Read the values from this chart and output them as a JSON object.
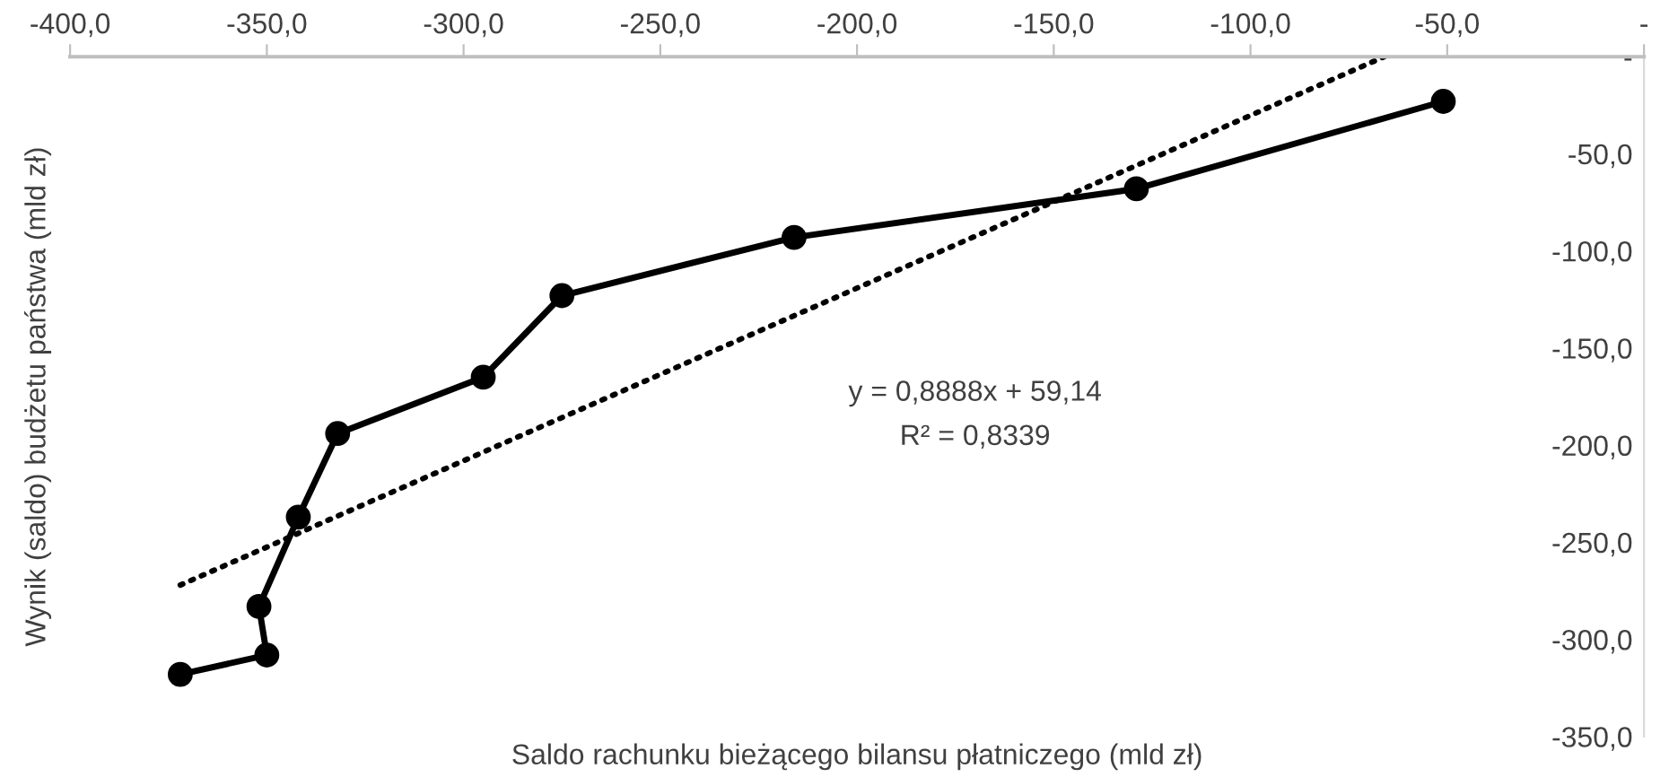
{
  "chart_data": {
    "type": "line",
    "xlabel": "Saldo rachunku bieżącego bilansu płatniczego (mld zł)",
    "ylabel": "Wynik (saldo) budżetu państwa (mld zł)",
    "annotations": [
      "y = 0,8888x + 59,14",
      "R² = 0,8339"
    ],
    "x": [
      -372,
      -350,
      -352,
      -342,
      -332,
      -295,
      -275,
      -216,
      -129,
      -51
    ],
    "series": [
      {
        "color": "#000000",
        "marker": "circle",
        "line_style": "solid",
        "values": [
          -318,
          -308,
          -283,
          -237,
          -194,
          -165,
          -123,
          -93,
          -68,
          -23
        ]
      },
      {
        "color": "#000000",
        "marker": "none",
        "line_style": "dotted",
        "x": [
          -372,
          -66
        ],
        "values": [
          -272,
          0
        ]
      }
    ],
    "xlim": [
      -400,
      0
    ],
    "ylim": [
      -350,
      0
    ],
    "xticks": [
      {
        "value": -400,
        "label": "-400,0"
      },
      {
        "value": -350,
        "label": "-350,0"
      },
      {
        "value": -300,
        "label": "-300,0"
      },
      {
        "value": -250,
        "label": "-250,0"
      },
      {
        "value": -200,
        "label": "-200,0"
      },
      {
        "value": -150,
        "label": "-150,0"
      },
      {
        "value": -100,
        "label": "-100,0"
      },
      {
        "value": -50,
        "label": "-50,0"
      },
      {
        "value": 0,
        "label": "-"
      }
    ],
    "yticks": [
      {
        "value": -350,
        "label": "-350,0"
      },
      {
        "value": -300,
        "label": "-300,0"
      },
      {
        "value": -250,
        "label": "-250,0"
      },
      {
        "value": -200,
        "label": "-200,0"
      },
      {
        "value": -150,
        "label": "-150,0"
      },
      {
        "value": -100,
        "label": "-100,0"
      },
      {
        "value": -50,
        "label": "-50,0"
      },
      {
        "value": 0,
        "label": "-"
      }
    ],
    "grid": false,
    "legend": false
  }
}
